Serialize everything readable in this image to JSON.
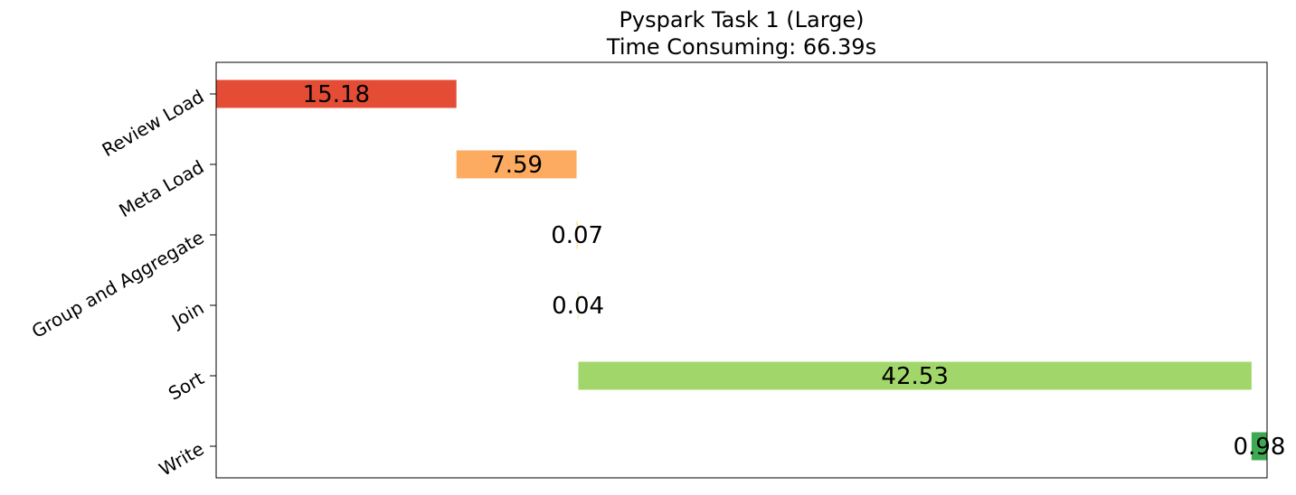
{
  "chart_data": {
    "type": "bar",
    "orientation": "horizontal-gantt",
    "title": "Pyspark Task 1 (Large)",
    "subtitle": "Time Consuming: 66.39s",
    "xlabel": "",
    "ylabel": "",
    "x_ticks_visible": false,
    "grid": false,
    "legend": "none",
    "xlim": [
      0,
      66.39
    ],
    "categories": [
      "Review Load",
      "Meta Load",
      "Group and Aggregate",
      "Join",
      "Sort",
      "Write"
    ],
    "starts": [
      0,
      15.18,
      22.77,
      22.84,
      22.88,
      65.41
    ],
    "values": [
      15.18,
      7.59,
      0.07,
      0.04,
      42.53,
      0.98
    ],
    "value_labels": [
      "15.18",
      "7.59",
      "0.07",
      "0.04",
      "42.53",
      "0.98"
    ],
    "colors": [
      "#e54c35",
      "#fdab60",
      "#fed98b",
      "#d9ef8b",
      "#a1d76a",
      "#3fa853"
    ]
  }
}
